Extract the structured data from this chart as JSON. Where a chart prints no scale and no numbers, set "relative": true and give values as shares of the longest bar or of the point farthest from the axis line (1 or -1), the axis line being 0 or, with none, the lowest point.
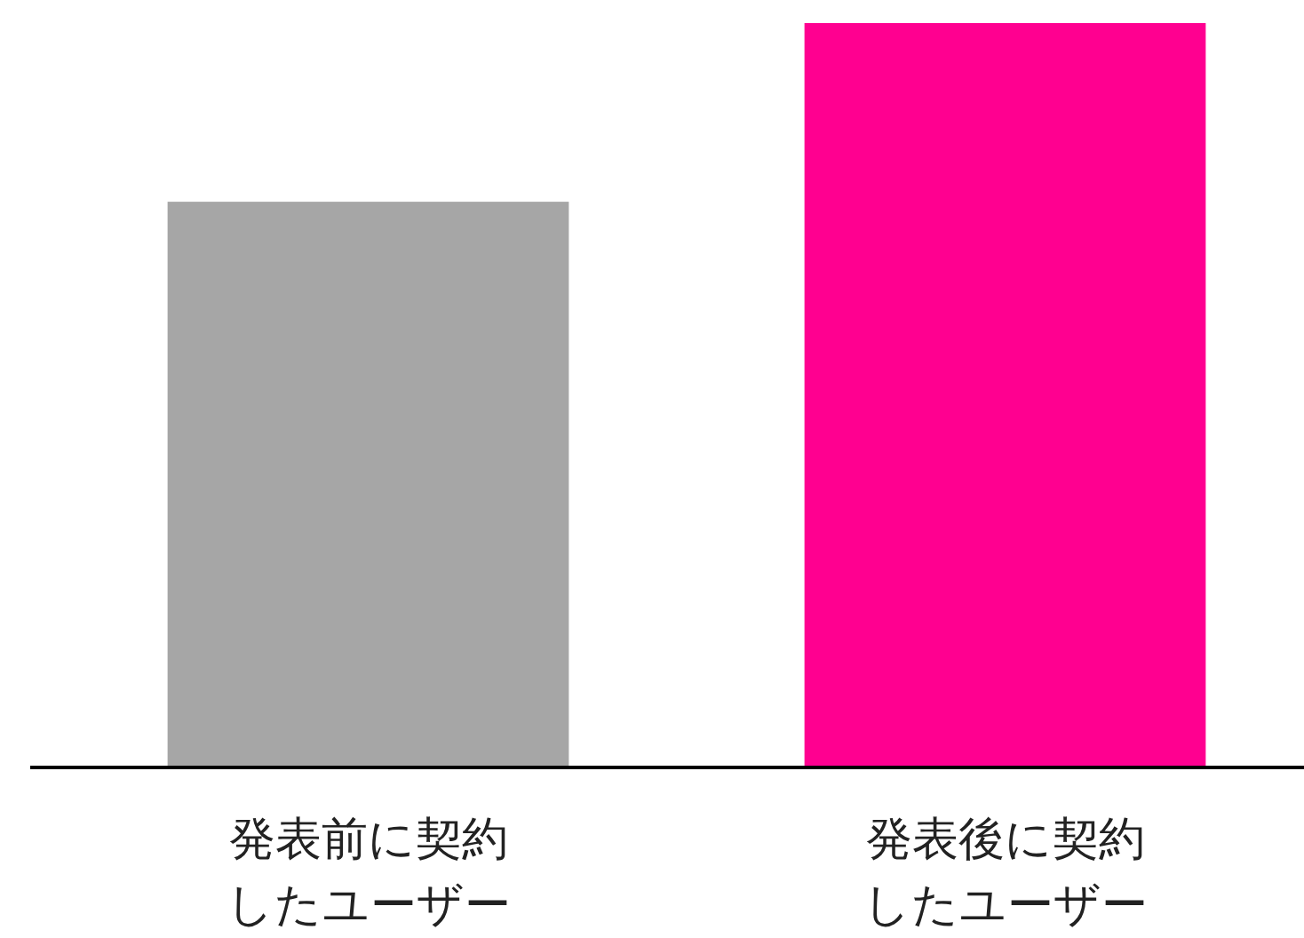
{
  "chart_data": {
    "type": "bar",
    "relative": true,
    "categories": [
      "発表前に契約したユーザー",
      "発表後に契約したユーザー"
    ],
    "values": [
      0.76,
      1
    ],
    "colors": [
      "#a6a6a6",
      "#ff0090"
    ]
  }
}
